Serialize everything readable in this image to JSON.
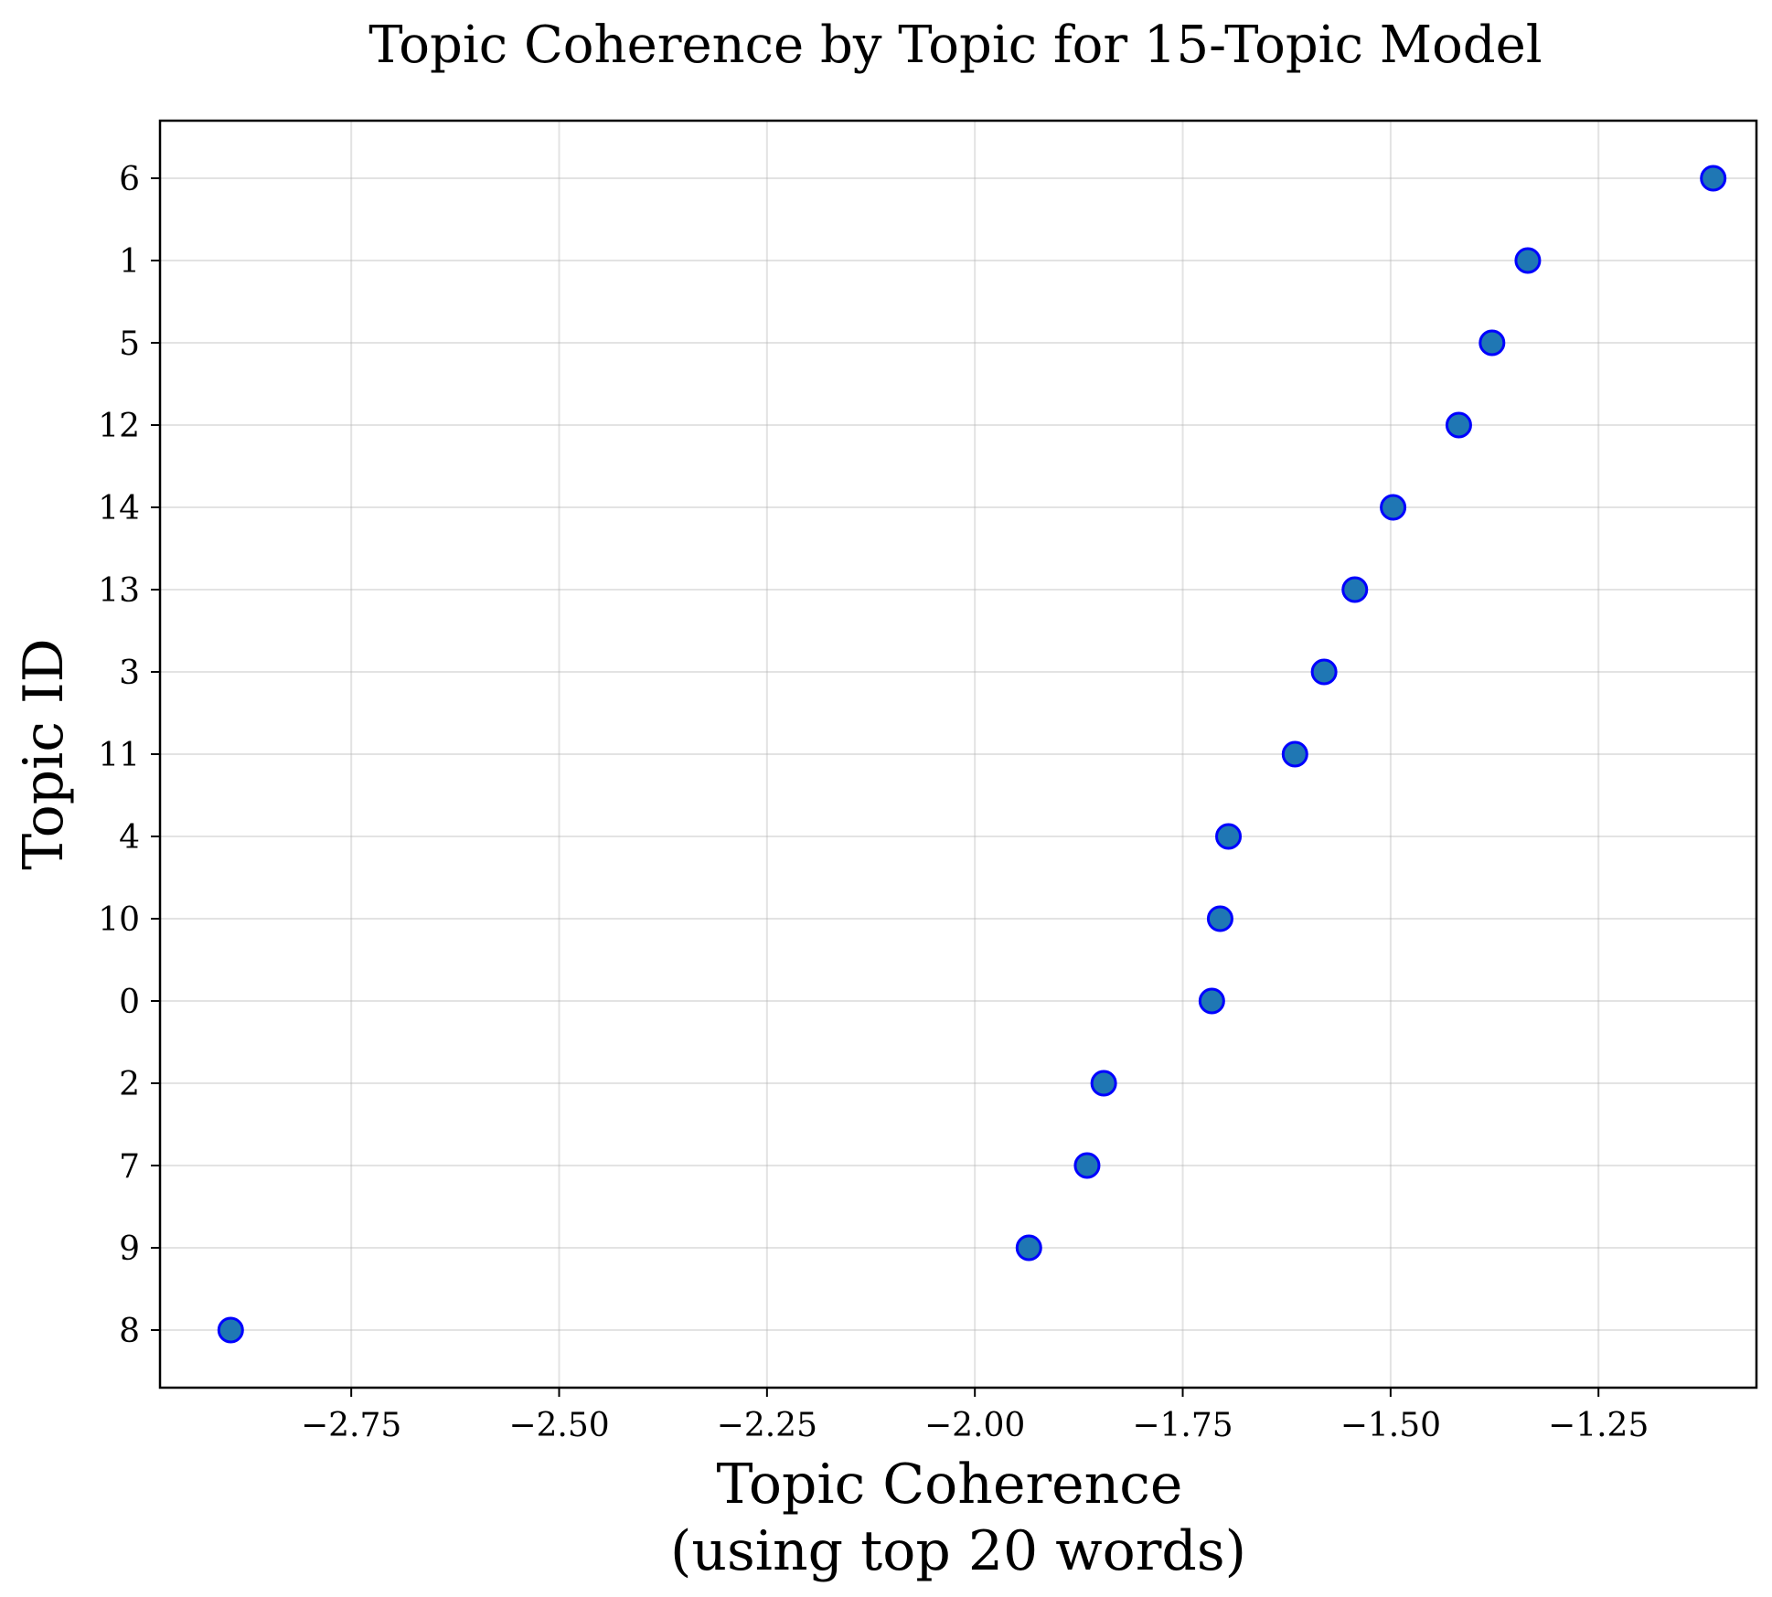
{
  "chart_data": {
    "type": "scatter",
    "title": "Topic Coherence by Topic for 15-Topic Model",
    "xlabel_lines": [
      "Topic Coherence",
      "(using top 20 words)"
    ],
    "ylabel": "Topic ID",
    "xlim": [
      -2.98,
      -1.06
    ],
    "x_ticks": [
      -2.75,
      -2.5,
      -2.25,
      -2.0,
      -1.75,
      -1.5,
      -1.25
    ],
    "x_tick_labels": [
      "−2.75",
      "−2.50",
      "−2.25",
      "−2.00",
      "−1.75",
      "−1.50",
      "−1.25"
    ],
    "categories": [
      "8",
      "9",
      "7",
      "2",
      "0",
      "10",
      "4",
      "11",
      "3",
      "13",
      "14",
      "12",
      "5",
      "1",
      "6"
    ],
    "values": [
      -2.895,
      -1.935,
      -1.865,
      -1.845,
      -1.715,
      -1.705,
      -1.695,
      -1.615,
      -1.58,
      -1.543,
      -1.497,
      -1.418,
      -1.378,
      -1.335,
      -1.112
    ],
    "grid": true,
    "marker_fill": "#1f77b4",
    "marker_edge": "#0000ff"
  }
}
